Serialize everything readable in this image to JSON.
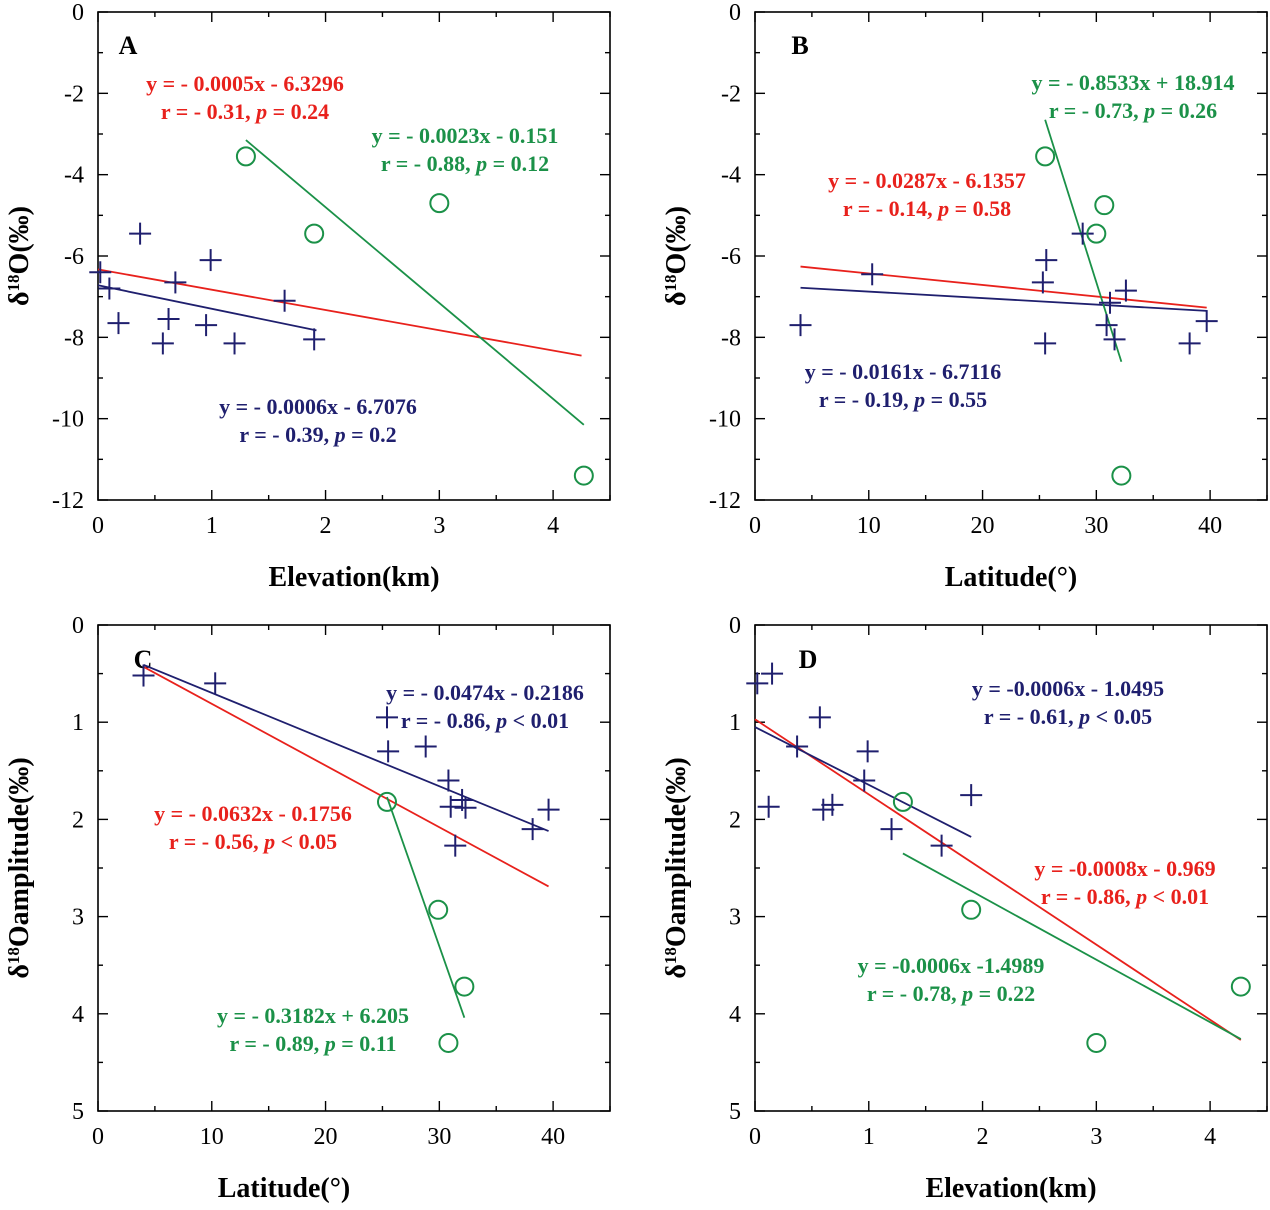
{
  "figure": {
    "background": "#ffffff"
  },
  "chart_data": [
    {
      "panel": "A",
      "type": "scatter",
      "xlabel": "Elevation(km)",
      "ylabel": "δ18O(‰)",
      "xlim": [
        0,
        4.5
      ],
      "ylim": [
        -12,
        0
      ],
      "xticks": [
        0,
        1,
        2,
        3,
        4
      ],
      "yticks": [
        0,
        -2,
        -4,
        -6,
        -8,
        -10,
        -12
      ],
      "y_inverted": false,
      "series": [
        {
          "marker": "plus",
          "color": "#1f1f6e",
          "points": [
            [
              0.02,
              -6.4
            ],
            [
              0.1,
              -6.8
            ],
            [
              0.18,
              -7.65
            ],
            [
              0.37,
              -5.45
            ],
            [
              0.57,
              -8.15
            ],
            [
              0.62,
              -7.55
            ],
            [
              0.68,
              -6.65
            ],
            [
              0.95,
              -7.7
            ],
            [
              0.99,
              -6.1
            ],
            [
              1.2,
              -8.15
            ],
            [
              1.64,
              -7.1
            ],
            [
              1.9,
              -8.05
            ]
          ]
        },
        {
          "marker": "circle",
          "color": "#1b9148",
          "points": [
            [
              1.3,
              -3.55
            ],
            [
              1.9,
              -5.45
            ],
            [
              3.0,
              -4.7
            ],
            [
              4.27,
              -11.4
            ]
          ]
        }
      ],
      "fits": [
        {
          "color": "#e8211c",
          "x": [
            0,
            4.25
          ],
          "y": [
            -6.33,
            -8.45
          ]
        },
        {
          "color": "#1f1f6e",
          "x": [
            0,
            1.92
          ],
          "y": [
            -6.72,
            -7.83
          ]
        },
        {
          "color": "#1b9148",
          "x": [
            1.3,
            4.27
          ],
          "y": [
            -3.15,
            -10.15
          ]
        }
      ],
      "annotations": [
        {
          "color": "#e8211c",
          "lines": [
            [
              {
                "t": "y = - 0.0005x - 6.3296"
              }
            ],
            [
              {
                "t": "r = - 0.31, "
              },
              {
                "t": "p",
                "i": true
              },
              {
                "t": " = 0.24"
              }
            ]
          ]
        },
        {
          "color": "#1b9148",
          "lines": [
            [
              {
                "t": "y = - 0.0023x - 0.151"
              }
            ],
            [
              {
                "t": "r = - 0.88, "
              },
              {
                "t": "p",
                "i": true
              },
              {
                "t": " = 0.12"
              }
            ]
          ]
        },
        {
          "color": "#1f1f6e",
          "lines": [
            [
              {
                "t": "y = - 0.0006x - 6.7076"
              }
            ],
            [
              {
                "t": "r = - 0.39, "
              },
              {
                "t": "p",
                "i": true
              },
              {
                "t": " = 0.2"
              }
            ]
          ]
        }
      ]
    },
    {
      "panel": "B",
      "type": "scatter",
      "xlabel": "Latitude(°)",
      "ylabel": "δ18O(‰)",
      "xlim": [
        0,
        45
      ],
      "ylim": [
        -12,
        0
      ],
      "xticks": [
        0,
        10,
        20,
        30,
        40
      ],
      "yticks": [
        0,
        -2,
        -4,
        -6,
        -8,
        -10,
        -12
      ],
      "y_inverted": false,
      "series": [
        {
          "marker": "plus",
          "color": "#1f1f6e",
          "points": [
            [
              4.0,
              -7.7
            ],
            [
              10.3,
              -6.45
            ],
            [
              25.3,
              -6.65
            ],
            [
              25.6,
              -6.1
            ],
            [
              25.5,
              -8.15
            ],
            [
              28.8,
              -5.45
            ],
            [
              30.9,
              -7.7
            ],
            [
              31.2,
              -7.15
            ],
            [
              31.6,
              -8.05
            ],
            [
              32.6,
              -6.85
            ],
            [
              38.2,
              -8.15
            ],
            [
              39.7,
              -7.6
            ]
          ]
        },
        {
          "marker": "circle",
          "color": "#1b9148",
          "points": [
            [
              25.5,
              -3.55
            ],
            [
              30.0,
              -5.45
            ],
            [
              30.7,
              -4.75
            ],
            [
              32.2,
              -11.4
            ]
          ]
        }
      ],
      "fits": [
        {
          "color": "#e8211c",
          "x": [
            4,
            39.7
          ],
          "y": [
            -6.26,
            -7.27
          ]
        },
        {
          "color": "#1f1f6e",
          "x": [
            4,
            39.7
          ],
          "y": [
            -6.78,
            -7.35
          ]
        },
        {
          "color": "#1b9148",
          "x": [
            25.5,
            32.2
          ],
          "y": [
            -2.65,
            -8.6
          ]
        }
      ],
      "annotations": [
        {
          "color": "#1b9148",
          "lines": [
            [
              {
                "t": "y = - 0.8533x + 18.914"
              }
            ],
            [
              {
                "t": "r = - 0.73, "
              },
              {
                "t": "p",
                "i": true
              },
              {
                "t": " = 0.26"
              }
            ]
          ]
        },
        {
          "color": "#e8211c",
          "lines": [
            [
              {
                "t": "y = - 0.0287x - 6.1357"
              }
            ],
            [
              {
                "t": "r = - 0.14, "
              },
              {
                "t": "p",
                "i": true
              },
              {
                "t": " = 0.58"
              }
            ]
          ]
        },
        {
          "color": "#1f1f6e",
          "lines": [
            [
              {
                "t": "y = - 0.0161x - 6.7116"
              }
            ],
            [
              {
                "t": "r = - 0.19, "
              },
              {
                "t": "p",
                "i": true
              },
              {
                "t": " = 0.55"
              }
            ]
          ]
        }
      ]
    },
    {
      "panel": "C",
      "type": "scatter",
      "xlabel": "Latitude(°)",
      "ylabel": "δ18Oamplitude(‰)",
      "xlim": [
        0,
        45
      ],
      "ylim": [
        0,
        5
      ],
      "xticks": [
        0,
        10,
        20,
        30,
        40
      ],
      "yticks": [
        0,
        1,
        2,
        3,
        4,
        5
      ],
      "y_inverted": true,
      "series": [
        {
          "marker": "plus",
          "color": "#1f1f6e",
          "points": [
            [
              4.0,
              0.52
            ],
            [
              10.3,
              0.6
            ],
            [
              25.4,
              0.95
            ],
            [
              25.5,
              1.3
            ],
            [
              28.8,
              1.25
            ],
            [
              30.8,
              1.6
            ],
            [
              31.0,
              1.87
            ],
            [
              31.4,
              2.27
            ],
            [
              32.3,
              1.88
            ],
            [
              32.0,
              1.8
            ],
            [
              38.2,
              2.1
            ],
            [
              39.6,
              1.9
            ]
          ]
        },
        {
          "marker": "circle",
          "color": "#1b9148",
          "points": [
            [
              25.4,
              1.82
            ],
            [
              29.9,
              2.93
            ],
            [
              30.8,
              4.3
            ],
            [
              32.2,
              3.72
            ]
          ]
        }
      ],
      "fits": [
        {
          "color": "#e8211c",
          "x": [
            4,
            39.6
          ],
          "y": [
            0.43,
            2.69
          ]
        },
        {
          "color": "#1f1f6e",
          "x": [
            4,
            39.6
          ],
          "y": [
            0.41,
            2.12
          ]
        },
        {
          "color": "#1b9148",
          "x": [
            25.4,
            32.2
          ],
          "y": [
            1.77,
            4.04
          ]
        }
      ],
      "annotations": [
        {
          "color": "#1f1f6e",
          "lines": [
            [
              {
                "t": "y = - 0.0474x - 0.2186"
              }
            ],
            [
              {
                "t": "r = - 0.86, "
              },
              {
                "t": "p",
                "i": true
              },
              {
                "t": " < 0.01"
              }
            ]
          ]
        },
        {
          "color": "#e8211c",
          "lines": [
            [
              {
                "t": "y = - 0.0632x - 0.1756"
              }
            ],
            [
              {
                "t": "r = - 0.56, "
              },
              {
                "t": "p",
                "i": true
              },
              {
                "t": " < 0.05"
              }
            ]
          ]
        },
        {
          "color": "#1b9148",
          "lines": [
            [
              {
                "t": "y = - 0.3182x + 6.205"
              }
            ],
            [
              {
                "t": "r = - 0.89, "
              },
              {
                "t": "p",
                "i": true
              },
              {
                "t": " = 0.11"
              }
            ]
          ]
        }
      ]
    },
    {
      "panel": "D",
      "type": "scatter",
      "xlabel": "Elevation(km)",
      "ylabel": "δ18Oamplitude(‰)",
      "xlim": [
        0,
        4.5
      ],
      "ylim": [
        0,
        5
      ],
      "xticks": [
        0,
        1,
        2,
        3,
        4
      ],
      "yticks": [
        0,
        1,
        2,
        3,
        4,
        5
      ],
      "y_inverted": true,
      "series": [
        {
          "marker": "plus",
          "color": "#1f1f6e",
          "points": [
            [
              0.02,
              0.6
            ],
            [
              0.15,
              0.5
            ],
            [
              0.12,
              1.87
            ],
            [
              0.37,
              1.25
            ],
            [
              0.57,
              0.95
            ],
            [
              0.6,
              1.9
            ],
            [
              0.68,
              1.85
            ],
            [
              0.96,
              1.6
            ],
            [
              0.99,
              1.3
            ],
            [
              1.2,
              2.1
            ],
            [
              1.64,
              2.27
            ],
            [
              1.9,
              1.75
            ]
          ]
        },
        {
          "marker": "circle",
          "color": "#1b9148",
          "points": [
            [
              1.3,
              1.82
            ],
            [
              1.9,
              2.93
            ],
            [
              3.0,
              4.3
            ],
            [
              4.27,
              3.72
            ]
          ]
        }
      ],
      "fits": [
        {
          "color": "#e8211c",
          "x": [
            0,
            4.27
          ],
          "y": [
            0.97,
            4.27
          ]
        },
        {
          "color": "#1f1f6e",
          "x": [
            0,
            1.9
          ],
          "y": [
            1.05,
            2.18
          ]
        },
        {
          "color": "#1b9148",
          "x": [
            1.3,
            4.27
          ],
          "y": [
            2.35,
            4.26
          ]
        }
      ],
      "annotations": [
        {
          "color": "#1f1f6e",
          "lines": [
            [
              {
                "t": "y = -0.0006x - 1.0495"
              }
            ],
            [
              {
                "t": "r = - 0.61, "
              },
              {
                "t": "p",
                "i": true
              },
              {
                "t": " < 0.05"
              }
            ]
          ]
        },
        {
          "color": "#e8211c",
          "lines": [
            [
              {
                "t": "y = -0.0008x - 0.969"
              }
            ],
            [
              {
                "t": "r = - 0.86, "
              },
              {
                "t": "p",
                "i": true
              },
              {
                "t": " < 0.01"
              }
            ]
          ]
        },
        {
          "color": "#1b9148",
          "lines": [
            [
              {
                "t": "y = -0.0006x -1.4989"
              }
            ],
            [
              {
                "t": "r = - 0.78, "
              },
              {
                "t": "p",
                "i": true
              },
              {
                "t": " = 0.22"
              }
            ]
          ]
        }
      ]
    }
  ]
}
